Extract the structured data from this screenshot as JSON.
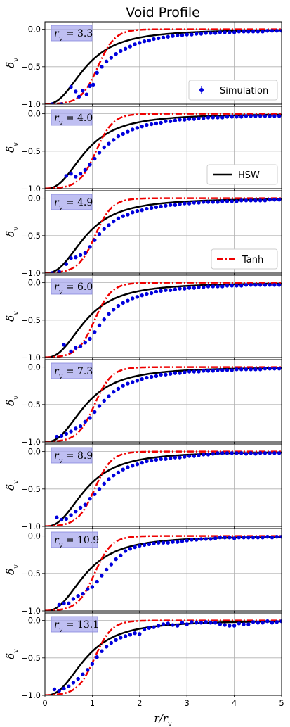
{
  "chart_data": {
    "type": "line",
    "title": "Void Profile",
    "xlabel": "r/r_v",
    "ylabel": "δ_v",
    "xlim": [
      0,
      5
    ],
    "ylim": [
      -1.0,
      0.1
    ],
    "xticks": [
      "0",
      "1",
      "2",
      "3",
      "4",
      "5"
    ],
    "yticks": [
      "0.0",
      "−0.5",
      "−1.0"
    ],
    "grid": true,
    "legend": [
      {
        "name": "Simulation",
        "panel": 0,
        "placement": "lower-right"
      },
      {
        "name": "HSW",
        "panel": 1,
        "placement": "lower-right"
      },
      {
        "name": "Tanh",
        "panel": 2,
        "placement": "lower-right"
      }
    ],
    "colors": {
      "simulation": "#0000dd",
      "hsw": "#000000",
      "tanh": "#ee0000"
    },
    "panels": [
      {
        "label": "r_v = 3.3",
        "rv_text": "3.3",
        "hsw_rs": 0.87,
        "tanh_rs": 1.12,
        "tanh_w": 0.36,
        "simulation": {
          "x": [
            0.15,
            0.35,
            0.55,
            0.65,
            0.72,
            0.8,
            0.88,
            0.95,
            1.02,
            1.1,
            1.2,
            1.3,
            1.4,
            1.5,
            1.6,
            1.7,
            1.8,
            1.9,
            2.0,
            2.1,
            2.2,
            2.3,
            2.4,
            2.5,
            2.6,
            2.7,
            2.8,
            2.9,
            3.0,
            3.1,
            3.2,
            3.3,
            3.4,
            3.5,
            3.6,
            3.7,
            3.8,
            3.9,
            4.0,
            4.1,
            4.2,
            4.3,
            4.4,
            4.5,
            4.6,
            4.7,
            4.8,
            4.9,
            5.0
          ],
          "y": [
            -1.0,
            -1.0,
            -0.77,
            -0.83,
            -0.9,
            -0.82,
            -0.87,
            -0.76,
            -0.74,
            -0.58,
            -0.5,
            -0.43,
            -0.38,
            -0.33,
            -0.29,
            -0.26,
            -0.23,
            -0.2,
            -0.18,
            -0.16,
            -0.15,
            -0.13,
            -0.12,
            -0.11,
            -0.1,
            -0.09,
            -0.08,
            -0.08,
            -0.07,
            -0.07,
            -0.06,
            -0.06,
            -0.05,
            -0.05,
            -0.05,
            -0.04,
            -0.04,
            -0.04,
            -0.04,
            -0.03,
            -0.03,
            -0.03,
            -0.03,
            -0.03,
            -0.03,
            -0.02,
            -0.02,
            -0.02,
            -0.02
          ]
        }
      },
      {
        "label": "r_v = 4.0",
        "rv_text": "4.0",
        "hsw_rs": 0.87,
        "tanh_rs": 1.08,
        "tanh_w": 0.36,
        "simulation": {
          "x": [
            0.45,
            0.55,
            0.65,
            0.75,
            0.85,
            0.95,
            1.05,
            1.15,
            1.25,
            1.35,
            1.45,
            1.55,
            1.65,
            1.75,
            1.85,
            1.95,
            2.05,
            2.15,
            2.25,
            2.35,
            2.45,
            2.55,
            2.65,
            2.75,
            2.85,
            2.95,
            3.05,
            3.15,
            3.25,
            3.35,
            3.45,
            3.55,
            3.65,
            3.75,
            3.85,
            3.95,
            4.05,
            4.15,
            4.25,
            4.35,
            4.45,
            4.55,
            4.65,
            4.75,
            4.85,
            4.95
          ],
          "y": [
            -0.83,
            -0.8,
            -0.84,
            -0.8,
            -0.75,
            -0.68,
            -0.6,
            -0.52,
            -0.45,
            -0.4,
            -0.35,
            -0.3,
            -0.27,
            -0.24,
            -0.21,
            -0.19,
            -0.17,
            -0.15,
            -0.14,
            -0.13,
            -0.12,
            -0.1,
            -0.1,
            -0.09,
            -0.08,
            -0.08,
            -0.07,
            -0.07,
            -0.06,
            -0.06,
            -0.05,
            -0.05,
            -0.05,
            -0.05,
            -0.04,
            -0.04,
            -0.04,
            -0.04,
            -0.03,
            -0.03,
            -0.03,
            -0.03,
            -0.03,
            -0.03,
            -0.03,
            -0.03
          ]
        }
      },
      {
        "label": "r_v = 4.9",
        "rv_text": "4.9",
        "hsw_rs": 0.87,
        "tanh_rs": 1.06,
        "tanh_w": 0.36,
        "simulation": {
          "x": [
            0.15,
            0.3,
            0.45,
            0.55,
            0.65,
            0.75,
            0.85,
            0.95,
            1.05,
            1.15,
            1.25,
            1.35,
            1.45,
            1.55,
            1.65,
            1.75,
            1.85,
            1.95,
            2.05,
            2.15,
            2.25,
            2.35,
            2.45,
            2.55,
            2.65,
            2.75,
            2.85,
            2.95,
            3.05,
            3.15,
            3.25,
            3.35,
            3.45,
            3.55,
            3.65,
            3.75,
            3.85,
            3.95,
            4.05,
            4.15,
            4.25,
            4.35,
            4.45,
            4.55,
            4.65,
            4.75,
            4.85,
            4.95
          ],
          "y": [
            -1.0,
            -0.98,
            -0.88,
            -0.8,
            -0.79,
            -0.76,
            -0.73,
            -0.65,
            -0.56,
            -0.48,
            -0.41,
            -0.36,
            -0.31,
            -0.27,
            -0.24,
            -0.22,
            -0.19,
            -0.17,
            -0.16,
            -0.14,
            -0.13,
            -0.12,
            -0.11,
            -0.1,
            -0.09,
            -0.09,
            -0.08,
            -0.07,
            -0.07,
            -0.06,
            -0.06,
            -0.05,
            -0.05,
            -0.05,
            -0.05,
            -0.04,
            -0.04,
            -0.04,
            -0.04,
            -0.03,
            -0.03,
            -0.03,
            -0.03,
            -0.03,
            -0.03,
            -0.02,
            -0.02,
            -0.02
          ]
        }
      },
      {
        "label": "r_v = 6.0",
        "rv_text": "6.0",
        "hsw_rs": 0.87,
        "tanh_rs": 1.05,
        "tanh_w": 0.36,
        "simulation": {
          "x": [
            0.4,
            0.55,
            0.65,
            0.75,
            0.85,
            0.95,
            1.05,
            1.15,
            1.25,
            1.35,
            1.45,
            1.55,
            1.65,
            1.75,
            1.85,
            1.95,
            2.05,
            2.15,
            2.25,
            2.35,
            2.45,
            2.55,
            2.65,
            2.75,
            2.85,
            2.95,
            3.05,
            3.15,
            3.25,
            3.35,
            3.45,
            3.55,
            3.65,
            3.75,
            3.85,
            3.95,
            4.05,
            4.15,
            4.25,
            4.35,
            4.45,
            4.55,
            4.65,
            4.75,
            4.85,
            4.95
          ],
          "y": [
            -0.83,
            -0.92,
            -0.87,
            -0.85,
            -0.8,
            -0.75,
            -0.66,
            -0.57,
            -0.49,
            -0.42,
            -0.36,
            -0.31,
            -0.27,
            -0.24,
            -0.21,
            -0.19,
            -0.17,
            -0.15,
            -0.14,
            -0.12,
            -0.11,
            -0.1,
            -0.1,
            -0.09,
            -0.08,
            -0.08,
            -0.07,
            -0.07,
            -0.06,
            -0.06,
            -0.05,
            -0.05,
            -0.05,
            -0.05,
            -0.04,
            -0.04,
            -0.04,
            -0.04,
            -0.03,
            -0.03,
            -0.03,
            -0.03,
            -0.03,
            -0.03,
            -0.03,
            -0.03
          ]
        }
      },
      {
        "label": "r_v = 7.3",
        "rv_text": "7.3",
        "hsw_rs": 0.87,
        "tanh_rs": 1.05,
        "tanh_w": 0.36,
        "simulation": {
          "x": [
            0.25,
            0.35,
            0.45,
            0.55,
            0.65,
            0.75,
            0.85,
            0.95,
            1.05,
            1.15,
            1.25,
            1.35,
            1.45,
            1.55,
            1.65,
            1.75,
            1.85,
            1.95,
            2.05,
            2.15,
            2.25,
            2.35,
            2.45,
            2.55,
            2.65,
            2.75,
            2.85,
            2.95,
            3.05,
            3.15,
            3.25,
            3.35,
            3.45,
            3.55,
            3.65,
            3.75,
            3.85,
            3.95,
            4.05,
            4.15,
            4.25,
            4.35,
            4.45,
            4.55,
            4.65,
            4.75,
            4.85,
            4.95
          ],
          "y": [
            -0.93,
            -0.92,
            -0.89,
            -0.86,
            -0.82,
            -0.79,
            -0.73,
            -0.68,
            -0.6,
            -0.52,
            -0.45,
            -0.39,
            -0.33,
            -0.29,
            -0.25,
            -0.22,
            -0.2,
            -0.18,
            -0.16,
            -0.14,
            -0.13,
            -0.12,
            -0.1,
            -0.1,
            -0.09,
            -0.08,
            -0.08,
            -0.07,
            -0.06,
            -0.06,
            -0.06,
            -0.05,
            -0.05,
            -0.05,
            -0.04,
            -0.04,
            -0.04,
            -0.04,
            -0.03,
            -0.03,
            -0.03,
            -0.03,
            -0.03,
            -0.03,
            -0.02,
            -0.02,
            -0.02,
            -0.02
          ]
        }
      },
      {
        "label": "r_v = 8.9",
        "rv_text": "8.9",
        "hsw_rs": 0.87,
        "tanh_rs": 1.05,
        "tanh_w": 0.36,
        "simulation": {
          "x": [
            0.25,
            0.35,
            0.45,
            0.55,
            0.65,
            0.75,
            0.85,
            0.95,
            1.05,
            1.15,
            1.25,
            1.35,
            1.45,
            1.55,
            1.65,
            1.75,
            1.85,
            1.95,
            2.05,
            2.15,
            2.25,
            2.35,
            2.45,
            2.55,
            2.65,
            2.75,
            2.85,
            2.95,
            3.05,
            3.15,
            3.25,
            3.35,
            3.45,
            3.55,
            3.65,
            3.75,
            3.85,
            3.95,
            4.05,
            4.15,
            4.25,
            4.35,
            4.45,
            4.55,
            4.65,
            4.75,
            4.85,
            4.95
          ],
          "y": [
            -0.88,
            -0.91,
            -0.9,
            -0.85,
            -0.8,
            -0.75,
            -0.71,
            -0.63,
            -0.57,
            -0.5,
            -0.43,
            -0.37,
            -0.32,
            -0.28,
            -0.24,
            -0.21,
            -0.19,
            -0.17,
            -0.15,
            -0.13,
            -0.12,
            -0.11,
            -0.1,
            -0.1,
            -0.09,
            -0.08,
            -0.08,
            -0.07,
            -0.06,
            -0.06,
            -0.05,
            -0.04,
            -0.04,
            -0.03,
            -0.02,
            -0.02,
            -0.02,
            -0.02,
            -0.02,
            -0.02,
            -0.03,
            -0.02,
            -0.03,
            -0.02,
            -0.02,
            -0.02,
            -0.02,
            -0.02
          ]
        }
      },
      {
        "label": "r_v = 10.9",
        "rv_text": "10.9",
        "hsw_rs": 0.87,
        "tanh_rs": 1.05,
        "tanh_w": 0.36,
        "simulation": {
          "x": [
            0.3,
            0.4,
            0.5,
            0.6,
            0.7,
            0.8,
            0.9,
            1.0,
            1.1,
            1.2,
            1.3,
            1.4,
            1.5,
            1.6,
            1.7,
            1.8,
            1.9,
            2.0,
            2.1,
            2.2,
            2.3,
            2.4,
            2.5,
            2.6,
            2.7,
            2.8,
            2.9,
            3.0,
            3.1,
            3.2,
            3.3,
            3.4,
            3.5,
            3.6,
            3.7,
            3.8,
            3.9,
            4.0,
            4.1,
            4.2,
            4.3,
            4.4,
            4.5,
            4.6,
            4.7,
            4.8,
            4.9,
            5.0
          ],
          "y": [
            -0.92,
            -0.9,
            -0.9,
            -0.84,
            -0.8,
            -0.77,
            -0.71,
            -0.68,
            -0.61,
            -0.53,
            -0.45,
            -0.38,
            -0.31,
            -0.26,
            -0.2,
            -0.17,
            -0.15,
            -0.13,
            -0.12,
            -0.11,
            -0.1,
            -0.09,
            -0.09,
            -0.09,
            -0.08,
            -0.08,
            -0.07,
            -0.06,
            -0.05,
            -0.05,
            -0.04,
            -0.04,
            -0.04,
            -0.03,
            -0.02,
            -0.02,
            -0.02,
            -0.03,
            -0.02,
            -0.02,
            -0.02,
            -0.02,
            -0.02,
            -0.02,
            -0.01,
            -0.02,
            -0.01,
            -0.01
          ]
        }
      },
      {
        "label": "r_v = 13.1",
        "rv_text": "13.1",
        "hsw_rs": 0.87,
        "tanh_rs": 1.05,
        "tanh_w": 0.36,
        "simulation": {
          "x": [
            0.2,
            0.3,
            0.4,
            0.5,
            0.6,
            0.7,
            0.8,
            0.9,
            1.0,
            1.1,
            1.2,
            1.3,
            1.4,
            1.5,
            1.6,
            1.7,
            1.8,
            1.9,
            2.0,
            2.1,
            2.2,
            2.3,
            2.4,
            2.5,
            2.6,
            2.7,
            2.8,
            2.9,
            3.0,
            3.1,
            3.2,
            3.3,
            3.4,
            3.5,
            3.6,
            3.7,
            3.8,
            3.9,
            4.0,
            4.1,
            4.2,
            4.3,
            4.4,
            4.5,
            4.6,
            4.7,
            4.8,
            4.9,
            5.0
          ],
          "y": [
            -0.92,
            -0.94,
            -0.91,
            -0.88,
            -0.83,
            -0.78,
            -0.72,
            -0.66,
            -0.58,
            -0.49,
            -0.41,
            -0.35,
            -0.3,
            -0.26,
            -0.23,
            -0.21,
            -0.19,
            -0.17,
            -0.18,
            -0.12,
            -0.1,
            -0.09,
            -0.07,
            -0.05,
            -0.04,
            -0.06,
            -0.07,
            -0.03,
            -0.05,
            -0.02,
            -0.03,
            -0.03,
            -0.02,
            -0.03,
            -0.03,
            -0.05,
            -0.06,
            -0.07,
            -0.07,
            -0.04,
            -0.05,
            -0.05,
            -0.02,
            -0.03,
            -0.03,
            -0.01,
            -0.03,
            -0.02,
            -0.01
          ]
        }
      }
    ]
  }
}
